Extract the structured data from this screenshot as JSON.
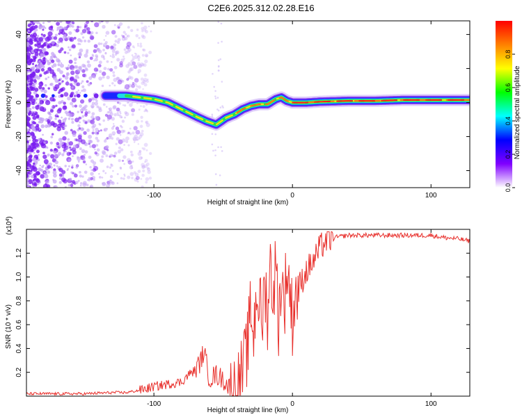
{
  "title": "C2E6.2025.312.02.28.E16",
  "chart_data": [
    {
      "type": "heatmap",
      "name": "spectrogram",
      "xlabel": "Height of straight line (km)",
      "ylabel": "Frequency (Hz)",
      "xlim": [
        -192,
        128
      ],
      "ylim": [
        -50,
        48
      ],
      "xticks": [
        -100,
        0,
        100
      ],
      "xtick_labels": [
        "-100",
        "0",
        "100"
      ],
      "yticks": [
        -40,
        -20,
        0,
        20,
        40
      ],
      "ytick_labels": [
        "-40",
        "-20",
        "0",
        "20",
        "40"
      ],
      "ridge": {
        "x": [
          -192,
          -150,
          -135,
          -120,
          -110,
          -100,
          -90,
          -80,
          -70,
          -62,
          -55,
          -48,
          -42,
          -36,
          -30,
          -24,
          -18,
          -12,
          -8,
          -4,
          0,
          10,
          20,
          40,
          60,
          80,
          100,
          110,
          128
        ],
        "y": [
          4,
          4,
          4,
          4,
          3,
          2,
          0,
          -4,
          -8,
          -11,
          -13,
          -9,
          -7,
          -4,
          -2,
          -1,
          -1,
          2,
          3,
          1,
          0,
          0,
          0.5,
          1,
          1,
          1.5,
          1.5,
          1.5,
          1.5
        ]
      },
      "colorbar": {
        "label": "Normalized spectral amplitude",
        "ticks": [
          0.0,
          0.2,
          0.4,
          0.6,
          0.8
        ],
        "tick_labels": [
          "0.0",
          "0.2",
          "0.4",
          "0.6",
          "0.8"
        ],
        "range": [
          0,
          1
        ],
        "colors": [
          "#ffffff",
          "#8000ff",
          "#0000ff",
          "#00ffff",
          "#00ff00",
          "#ffff00",
          "#ff8000",
          "#ff0000"
        ]
      }
    },
    {
      "type": "line",
      "name": "snr",
      "xlabel": "Height of straight line (km)",
      "ylabel": "SNR (10 * v/v)",
      "exponent_label": "(x10",
      "exponent_power": "4",
      "exponent_close": ")",
      "xlim": [
        -192,
        128
      ],
      "ylim": [
        0,
        1.4
      ],
      "xticks": [
        -100,
        0,
        100
      ],
      "xtick_labels": [
        "-100",
        "0",
        "100"
      ],
      "yticks": [
        0.2,
        0.4,
        0.6,
        0.8,
        1.0,
        1.2
      ],
      "ytick_labels": [
        "0.2",
        "0.4",
        "0.6",
        "0.8",
        "1.0",
        "1.2"
      ],
      "color": "#e8302c",
      "series": [
        {
          "name": "SNR",
          "x": [
            -192,
            -150,
            -130,
            -120,
            -110,
            -100,
            -90,
            -80,
            -75,
            -70,
            -66,
            -64,
            -60,
            -55,
            -50,
            -44,
            -40,
            -36,
            -34,
            -32,
            -30,
            -28,
            -26,
            -24,
            -22,
            -20,
            -18,
            -16,
            -14,
            -12,
            -10,
            -8,
            -6,
            -4,
            -2,
            0,
            2,
            6,
            10,
            16,
            20,
            24,
            30,
            40,
            50,
            60,
            80,
            100,
            110,
            120,
            128
          ],
          "y": [
            0.02,
            0.02,
            0.03,
            0.03,
            0.05,
            0.08,
            0.1,
            0.12,
            0.18,
            0.22,
            0.3,
            0.38,
            0.15,
            0.18,
            0.14,
            0.05,
            0.05,
            0.2,
            0.3,
            0.45,
            0.75,
            0.5,
            0.9,
            0.8,
            0.6,
            0.95,
            0.7,
            1.1,
            0.85,
            1.1,
            0.65,
            1.0,
            0.75,
            1.1,
            0.9,
            0.65,
            0.85,
            0.95,
            1.05,
            1.15,
            1.25,
            1.3,
            1.33,
            1.35,
            1.35,
            1.35,
            1.35,
            1.35,
            1.33,
            1.32,
            1.3
          ]
        }
      ]
    }
  ]
}
